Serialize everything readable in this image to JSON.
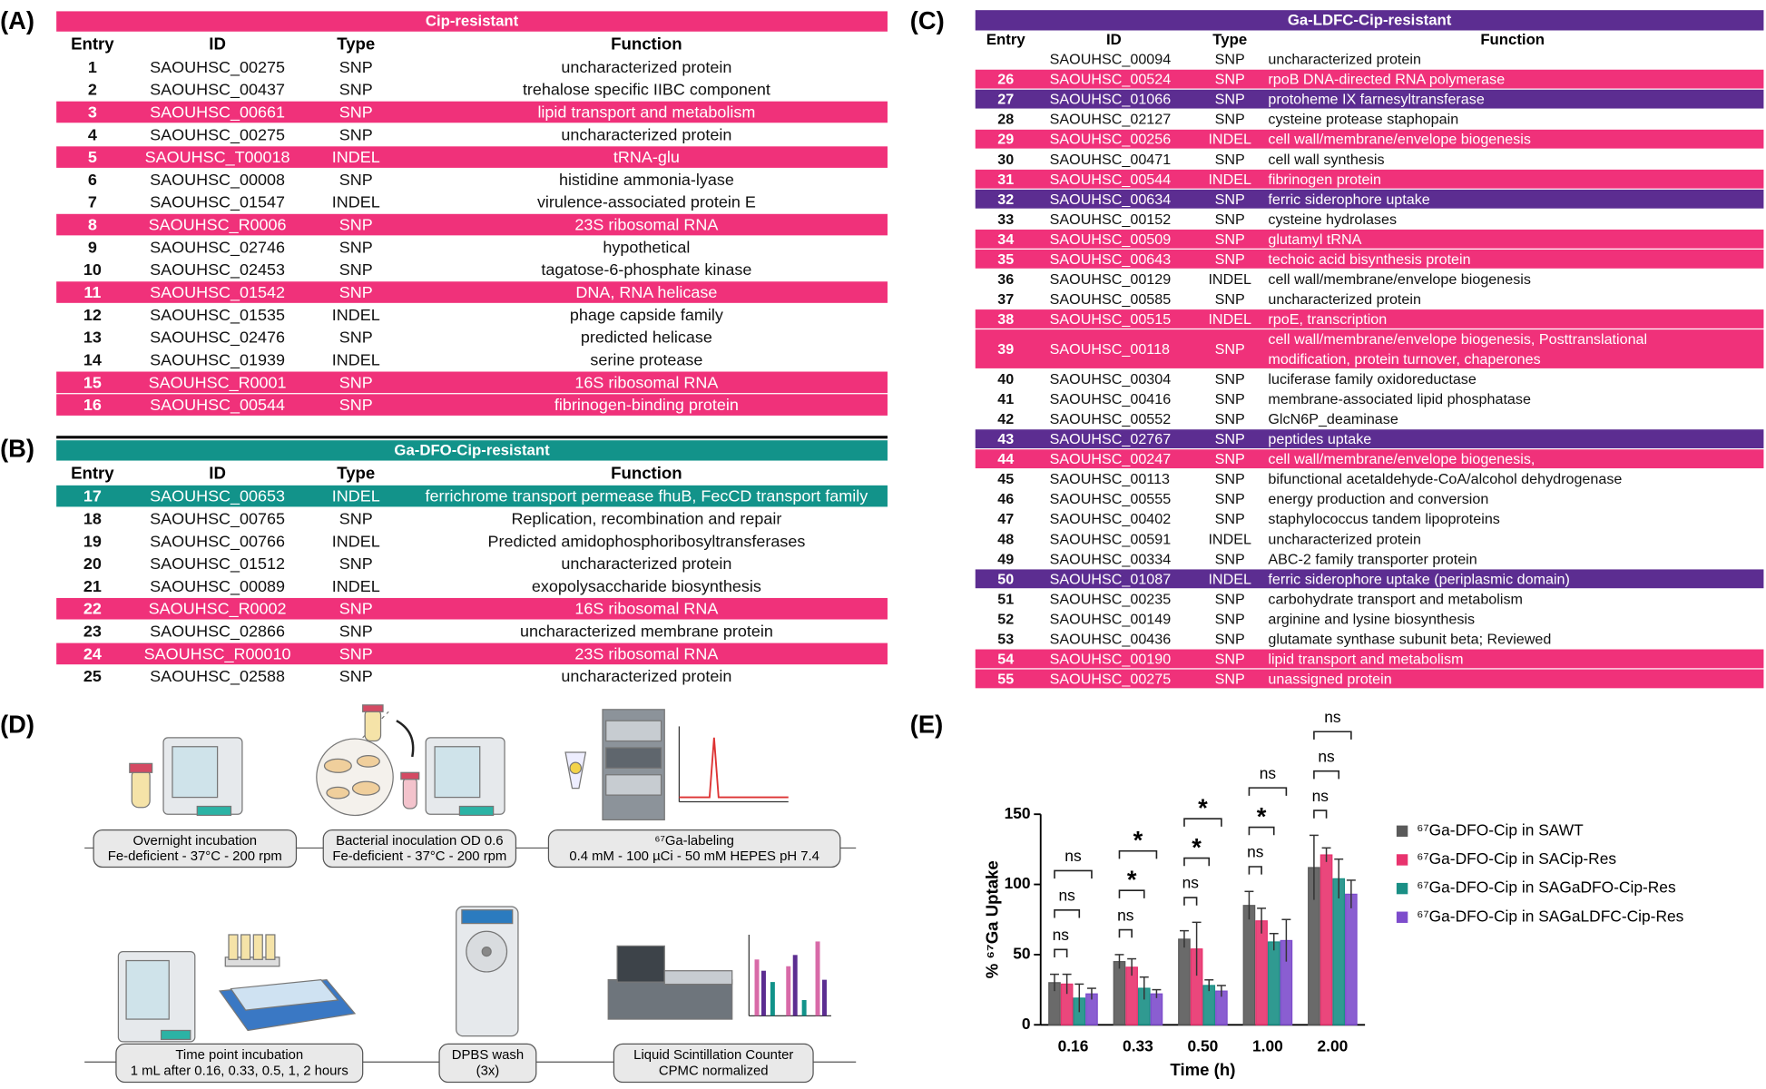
{
  "tables": [
    {
      "label": "(A)",
      "title": "Cip-resistant",
      "header_color": "#f0317a",
      "columns": [
        "Entry",
        "ID",
        "Type",
        "Function"
      ],
      "rows": [
        {
          "cells": [
            "1",
            "SAOUHSC_00275",
            "SNP",
            "uncharacterized protein"
          ]
        },
        {
          "cells": [
            "2",
            "SAOUHSC_00437",
            "SNP",
            "trehalose specific IIBC component"
          ]
        },
        {
          "cells": [
            "3",
            "SAOUHSC_00661",
            "SNP",
            "lipid transport and metabolism"
          ],
          "highlight": "#f0317a"
        },
        {
          "cells": [
            "4",
            "SAOUHSC_00275",
            "SNP",
            "uncharacterized protein"
          ]
        },
        {
          "cells": [
            "5",
            "SAOUHSC_T00018",
            "INDEL",
            "tRNA-glu"
          ],
          "highlight": "#f0317a"
        },
        {
          "cells": [
            "6",
            "SAOUHSC_00008",
            "SNP",
            "histidine ammonia-lyase"
          ]
        },
        {
          "cells": [
            "7",
            "SAOUHSC_01547",
            "INDEL",
            "virulence-associated protein E"
          ]
        },
        {
          "cells": [
            "8",
            "SAOUHSC_R0006",
            "SNP",
            "23S ribosomal RNA"
          ],
          "highlight": "#f0317a"
        },
        {
          "cells": [
            "9",
            "SAOUHSC_02746",
            "SNP",
            "hypothetical"
          ]
        },
        {
          "cells": [
            "10",
            "SAOUHSC_02453",
            "SNP",
            "tagatose-6-phosphate kinase"
          ]
        },
        {
          "cells": [
            "11",
            "SAOUHSC_01542",
            "SNP",
            "DNA, RNA helicase"
          ],
          "highlight": "#f0317a"
        },
        {
          "cells": [
            "12",
            "SAOUHSC_01535",
            "INDEL",
            "phage capside family"
          ]
        },
        {
          "cells": [
            "13",
            "SAOUHSC_02476",
            "SNP",
            "predicted helicase"
          ]
        },
        {
          "cells": [
            "14",
            "SAOUHSC_01939",
            "INDEL",
            "serine protease"
          ]
        },
        {
          "cells": [
            "15",
            "SAOUHSC_R0001",
            "SNP",
            "16S ribosomal RNA"
          ],
          "highlight": "#f0317a"
        },
        {
          "cells": [
            "16",
            "SAOUHSC_00544",
            "SNP",
            "fibrinogen-binding protein"
          ],
          "highlight": "#f0317a"
        }
      ]
    },
    {
      "label": "(B)",
      "title": "Ga-DFO-Cip-resistant",
      "header_color": "#12938a",
      "columns": [
        "Entry",
        "ID",
        "Type",
        "Function"
      ],
      "rows": [
        {
          "cells": [
            "17",
            "SAOUHSC_00653",
            "INDEL",
            "ferrichrome transport permease fhuB, FecCD transport family"
          ],
          "highlight": "#12938a"
        },
        {
          "cells": [
            "18",
            "SAOUHSC_00765",
            "SNP",
            "Replication, recombination and repair"
          ]
        },
        {
          "cells": [
            "19",
            "SAOUHSC_00766",
            "INDEL",
            "Predicted amidophosphoribosyltransferases"
          ]
        },
        {
          "cells": [
            "20",
            "SAOUHSC_01512",
            "SNP",
            "uncharacterized protein"
          ]
        },
        {
          "cells": [
            "21",
            "SAOUHSC_00089",
            "INDEL",
            "exopolysaccharide biosynthesis"
          ]
        },
        {
          "cells": [
            "22",
            "SAOUHSC_R0002",
            "SNP",
            "16S ribosomal RNA"
          ],
          "highlight": "#f0317a"
        },
        {
          "cells": [
            "23",
            "SAOUHSC_02866",
            "SNP",
            "uncharacterized membrane protein"
          ]
        },
        {
          "cells": [
            "24",
            "SAOUHSC_R00010",
            "SNP",
            "23S ribosomal RNA"
          ],
          "highlight": "#f0317a"
        },
        {
          "cells": [
            "25",
            "SAOUHSC_02588",
            "SNP",
            "uncharacterized protein"
          ]
        }
      ]
    },
    {
      "label": "(C)",
      "title": "Ga-LDFC-Cip-resistant",
      "header_color": "#5c2d91",
      "columns": [
        "Entry",
        "ID",
        "Type",
        "Function"
      ],
      "rows": [
        {
          "cells": [
            null,
            "SAOUHSC_00094",
            "SNP",
            "uncharacterized protein"
          ]
        },
        {
          "cells": [
            "26",
            "SAOUHSC_00524",
            "SNP",
            "rpoB DNA-directed RNA polymerase"
          ],
          "highlight": "#f0317a"
        },
        {
          "cells": [
            "27",
            "SAOUHSC_01066",
            "SNP",
            "protoheme IX farnesyltransferase"
          ],
          "highlight": "#5c2d91"
        },
        {
          "cells": [
            "28",
            "SAOUHSC_02127",
            "SNP",
            "cysteine protease staphopain"
          ]
        },
        {
          "cells": [
            "29",
            "SAOUHSC_00256",
            "INDEL",
            "cell wall/membrane/envelope biogenesis"
          ],
          "highlight": "#f0317a"
        },
        {
          "cells": [
            "30",
            "SAOUHSC_00471",
            "SNP",
            "cell wall synthesis"
          ]
        },
        {
          "cells": [
            "31",
            "SAOUHSC_00544",
            "INDEL",
            "fibrinogen protein"
          ],
          "highlight": "#f0317a"
        },
        {
          "cells": [
            "32",
            "SAOUHSC_00634",
            "SNP",
            "ferric siderophore uptake"
          ],
          "highlight": "#5c2d91"
        },
        {
          "cells": [
            "33",
            "SAOUHSC_00152",
            "SNP",
            "cysteine hydrolases"
          ]
        },
        {
          "cells": [
            "34",
            "SAOUHSC_00509",
            "SNP",
            "glutamyl tRNA"
          ],
          "highlight": "#f0317a"
        },
        {
          "cells": [
            "35",
            "SAOUHSC_00643",
            "SNP",
            "techoic acid bisynthesis protein"
          ],
          "highlight": "#f0317a"
        },
        {
          "cells": [
            "36",
            "SAOUHSC_00129",
            "INDEL",
            "cell wall/membrane/envelope biogenesis"
          ]
        },
        {
          "cells": [
            "37",
            "SAOUHSC_00585",
            "SNP",
            "uncharacterized protein"
          ]
        },
        {
          "cells": [
            "38",
            "SAOUHSC_00515",
            "INDEL",
            "rpoE, transcription"
          ],
          "highlight": "#f0317a"
        },
        {
          "cells": [
            "39",
            "SAOUHSC_00118",
            "SNP",
            [
              "cell wall/membrane/envelope biogenesis, Posttranslational",
              "modification, protein turnover, chaperones"
            ]
          ],
          "highlight": "#f0317a"
        },
        {
          "cells": [
            "40",
            "SAOUHSC_00304",
            "SNP",
            "luciferase family oxidoreductase"
          ]
        },
        {
          "cells": [
            "41",
            "SAOUHSC_00416",
            "SNP",
            "membrane-associated lipid phosphatase"
          ]
        },
        {
          "cells": [
            "42",
            "SAOUHSC_00552",
            "SNP",
            "GlcN6P_deaminase"
          ]
        },
        {
          "cells": [
            "43",
            "SAOUHSC_02767",
            "SNP",
            "peptides uptake"
          ],
          "highlight": "#5c2d91"
        },
        {
          "cells": [
            "44",
            "SAOUHSC_00247",
            "SNP",
            "cell wall/membrane/envelope biogenesis,"
          ],
          "highlight": "#f0317a"
        },
        {
          "cells": [
            "45",
            "SAOUHSC_00113",
            "SNP",
            "bifunctional acetaldehyde-CoA/alcohol dehydrogenase"
          ]
        },
        {
          "cells": [
            "46",
            "SAOUHSC_00555",
            "SNP",
            "energy production and conversion"
          ]
        },
        {
          "cells": [
            "47",
            "SAOUHSC_00402",
            "SNP",
            "staphylococcus tandem lipoproteins"
          ]
        },
        {
          "cells": [
            "48",
            "SAOUHSC_00591",
            "INDEL",
            "uncharacterized protein"
          ]
        },
        {
          "cells": [
            "49",
            "SAOUHSC_00334",
            "SNP",
            "ABC-2 family transporter protein"
          ]
        },
        {
          "cells": [
            "50",
            "SAOUHSC_01087",
            "INDEL",
            "ferric siderophore uptake (periplasmic domain)"
          ],
          "highlight": "#5c2d91"
        },
        {
          "cells": [
            "51",
            "SAOUHSC_00235",
            "SNP",
            "carbohydrate transport and metabolism"
          ]
        },
        {
          "cells": [
            "52",
            "SAOUHSC_00149",
            "SNP",
            "arginine and lysine biosynthesis"
          ]
        },
        {
          "cells": [
            "53",
            "SAOUHSC_00436",
            "SNP",
            "glutamate synthase subunit beta; Reviewed"
          ]
        },
        {
          "cells": [
            "54",
            "SAOUHSC_00190",
            "SNP",
            "lipid transport and metabolism"
          ],
          "highlight": "#f0317a"
        },
        {
          "cells": [
            "55",
            "SAOUHSC_00275",
            "SNP",
            "unassigned protein"
          ],
          "highlight": "#f0317a"
        }
      ]
    }
  ],
  "workflow": {
    "label": "(D)",
    "steps": [
      {
        "title": "Overnight incubation",
        "detail": "Fe-deficient - 37°C - 200 rpm"
      },
      {
        "title": "Bacterial inoculation OD 0.6",
        "detail": "Fe-deficient - 37°C - 200 rpm"
      },
      {
        "title": "⁶⁷Ga-labeling",
        "detail": "0.4 mM - 100 µCi - 50 mM HEPES pH 7.4"
      },
      {
        "title": "Time point incubation",
        "detail": "1 mL after 0.16, 0.33, 0.5, 1, 2 hours"
      },
      {
        "title": "DPBS wash",
        "detail": "(3x)"
      },
      {
        "title": "Liquid Scintillation Counter",
        "detail": "CPMC normalized"
      }
    ]
  },
  "chart_data": {
    "type": "bar",
    "label": "(E)",
    "x_label": "Time (h)",
    "y_label": "% ⁶⁷Ga Uptake",
    "categories": [
      "0.16",
      "0.33",
      "0.50",
      "1.00",
      "2.00"
    ],
    "ylim": [
      0,
      150
    ],
    "yticks": [
      0,
      50,
      100,
      150
    ],
    "grid": false,
    "legend": "right",
    "series": [
      {
        "name": "⁶⁷Ga-DFO-Cip in SAWT",
        "color": "#5a5a5a",
        "values": [
          30,
          45,
          61,
          85,
          112
        ],
        "errors": [
          6,
          5,
          6,
          10,
          23
        ]
      },
      {
        "name": "⁶⁷Ga-DFO-Cip in SACip-Res",
        "color": "#e8336e",
        "values": [
          29,
          41,
          54,
          74,
          121
        ],
        "errors": [
          7,
          6,
          19,
          9,
          5
        ]
      },
      {
        "name": "⁶⁷Ga-DFO-Cip in SAGaDFO-Cip-Res",
        "color": "#1a8f85",
        "values": [
          19,
          26,
          28,
          59,
          104
        ],
        "errors": [
          10,
          8,
          4,
          6,
          14
        ]
      },
      {
        "name": "⁶⁷Ga-DFO-Cip in SAGaLDFC-Cip-Res",
        "color": "#7d4ccc",
        "values": [
          22,
          22,
          24,
          60,
          93
        ],
        "errors": [
          4,
          3,
          4,
          15,
          10
        ]
      }
    ],
    "significance": [
      [
        "ns",
        "ns",
        "ns"
      ],
      [
        "ns",
        "*",
        "*"
      ],
      [
        "ns",
        "*",
        "*"
      ],
      [
        "ns",
        "*",
        "ns"
      ],
      [
        "ns",
        "ns",
        "ns"
      ]
    ]
  }
}
